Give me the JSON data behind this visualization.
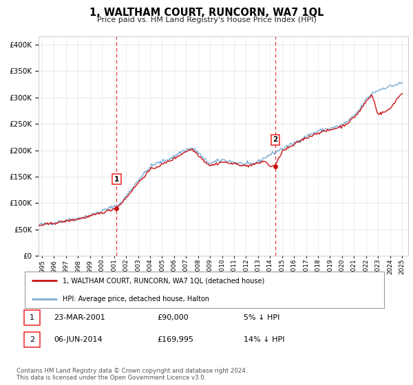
{
  "title": "1, WALTHAM COURT, RUNCORN, WA7 1QL",
  "subtitle": "Price paid vs. HM Land Registry's House Price Index (HPI)",
  "ytick_values": [
    0,
    50000,
    100000,
    150000,
    200000,
    250000,
    300000,
    350000,
    400000
  ],
  "ylim": [
    0,
    415000
  ],
  "xlim_start": 1994.7,
  "xlim_end": 2025.5,
  "hpi_color": "#7aadd4",
  "price_color": "#cc1111",
  "vline_color": "#ee3333",
  "marker1_year": 2001.22,
  "marker1_value": 90000,
  "marker2_year": 2014.43,
  "marker2_value": 169995,
  "legend_label1": "1, WALTHAM COURT, RUNCORN, WA7 1QL (detached house)",
  "legend_label2": "HPI: Average price, detached house, Halton",
  "table_row1": [
    "1",
    "23-MAR-2001",
    "£90,000",
    "5% ↓ HPI"
  ],
  "table_row2": [
    "2",
    "06-JUN-2014",
    "£169,995",
    "14% ↓ HPI"
  ],
  "footer": "Contains HM Land Registry data © Crown copyright and database right 2024.\nThis data is licensed under the Open Government Licence v3.0.",
  "background_color": "#ffffff",
  "grid_color": "#e0e0e0",
  "xtick_years": [
    1995,
    1996,
    1997,
    1998,
    1999,
    2000,
    2001,
    2002,
    2003,
    2004,
    2005,
    2006,
    2007,
    2008,
    2009,
    2010,
    2011,
    2012,
    2013,
    2014,
    2015,
    2016,
    2017,
    2018,
    2019,
    2020,
    2021,
    2022,
    2023,
    2024,
    2025
  ]
}
